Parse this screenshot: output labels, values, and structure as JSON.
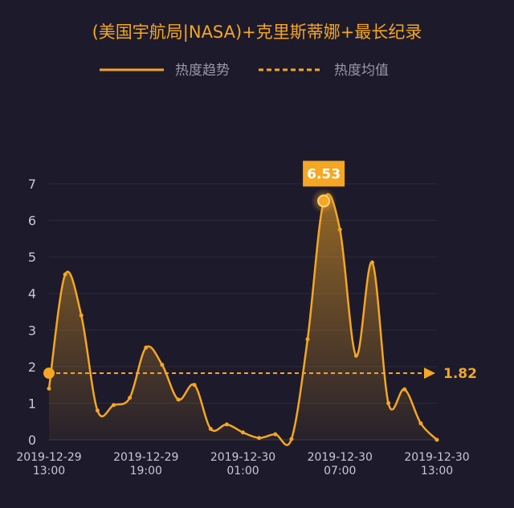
{
  "chart_data": {
    "type": "line",
    "title": "(美国宇航局|NASA)+克里斯蒂娜+最长纪录",
    "legend": {
      "placement": "top",
      "trend_label": "热度趋势",
      "average_label": "热度均值"
    },
    "ylim": [
      0,
      7
    ],
    "yticks": [
      "0",
      "1",
      "2",
      "3",
      "4",
      "5",
      "6",
      "7"
    ],
    "xlim": [
      0,
      24
    ],
    "xticks": [
      {
        "x": 0,
        "line1": "2019-12-29",
        "line2": "13:00"
      },
      {
        "x": 6,
        "line1": "2019-12-29",
        "line2": "19:00"
      },
      {
        "x": 12,
        "line1": "2019-12-30",
        "line2": "01:00"
      },
      {
        "x": 18,
        "line1": "2019-12-30",
        "line2": "07:00"
      },
      {
        "x": 24,
        "line1": "2019-12-30",
        "line2": "13:00"
      }
    ],
    "series": [
      {
        "x": [
          0,
          1,
          2,
          3,
          4,
          5,
          6,
          7,
          8,
          9,
          10,
          11,
          12,
          13,
          14,
          15,
          16,
          17,
          18,
          19,
          20,
          21,
          22,
          23,
          24
        ],
        "values": [
          1.4,
          4.52,
          3.4,
          0.8,
          0.95,
          1.15,
          2.52,
          2.05,
          1.1,
          1.5,
          0.3,
          0.42,
          0.2,
          0.05,
          0.15,
          0.02,
          2.75,
          6.53,
          5.75,
          2.3,
          4.85,
          1.0,
          1.38,
          0.45,
          0.0
        ]
      }
    ],
    "average": {
      "value": 1.82,
      "label": "1.82"
    },
    "peak": {
      "x": 17,
      "value": 6.53,
      "label": "6.53"
    },
    "colors": {
      "line": "#f5a623",
      "background": "#1c1a2b",
      "text": "#c9c7d4",
      "grid": "#2c2a3e"
    }
  }
}
